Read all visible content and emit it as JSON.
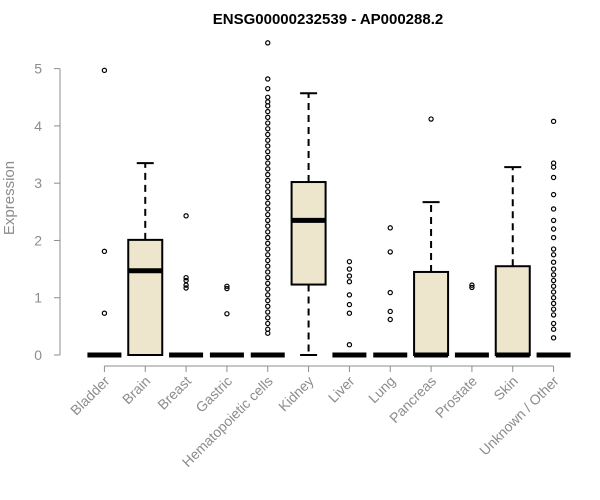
{
  "chart_data": {
    "type": "box",
    "title": "ENSG00000232539 - AP000288.2",
    "xlabel": "",
    "ylabel": "Expression",
    "ylim": [
      0,
      5.5
    ],
    "yticks": [
      0,
      1,
      2,
      3,
      4,
      5
    ],
    "ytick_labels": [
      "0",
      "1",
      "2",
      "3",
      "4",
      "5"
    ],
    "categories": [
      "Bladder",
      "Brain",
      "Breast",
      "Gastric",
      "Hematopoietic cells",
      "Kidney",
      "Liver",
      "Lung",
      "Pancreas",
      "Prostate",
      "Skin",
      "Unknown / Other"
    ],
    "box_fill": "#ede6cd",
    "grid": false,
    "boxes": [
      {
        "q1": 0,
        "median": 0,
        "q3": 0,
        "whisker_low": 0,
        "whisker_high": 0,
        "outliers": [
          4.97,
          1.81,
          0.73
        ]
      },
      {
        "q1": 0,
        "median": 1.47,
        "q3": 2.01,
        "whisker_low": 0,
        "whisker_high": 3.35,
        "outliers": []
      },
      {
        "q1": 0,
        "median": 0,
        "q3": 0,
        "whisker_low": 0,
        "whisker_high": 0,
        "outliers": [
          2.43,
          1.35,
          1.3,
          1.22,
          1.17
        ]
      },
      {
        "q1": 0,
        "median": 0,
        "q3": 0,
        "whisker_low": 0,
        "whisker_high": 0,
        "outliers": [
          1.2,
          1.16,
          0.72
        ]
      },
      {
        "q1": 0,
        "median": 0,
        "q3": 0,
        "whisker_low": 0,
        "whisker_high": 0,
        "outliers": [
          5.45,
          4.82,
          4.65,
          4.5,
          4.42,
          4.35,
          4.25,
          4.15,
          4.05,
          3.95,
          3.85,
          3.75,
          3.65,
          3.55,
          3.45,
          3.35,
          3.25,
          3.15,
          3.05,
          2.95,
          2.85,
          2.75,
          2.65,
          2.55,
          2.45,
          2.35,
          2.25,
          2.15,
          2.05,
          1.95,
          1.85,
          1.75,
          1.65,
          1.55,
          1.45,
          1.35,
          1.25,
          1.15,
          1.05,
          0.95,
          0.85,
          0.75,
          0.65,
          0.55,
          0.45,
          0.38
        ]
      },
      {
        "q1": 1.23,
        "median": 2.35,
        "q3": 3.02,
        "whisker_low": 0,
        "whisker_high": 4.57,
        "outliers": []
      },
      {
        "q1": 0,
        "median": 0,
        "q3": 0,
        "whisker_low": 0,
        "whisker_high": 0,
        "outliers": [
          1.63,
          1.5,
          1.38,
          1.28,
          1.05,
          0.88,
          0.73,
          0.18
        ]
      },
      {
        "q1": 0,
        "median": 0,
        "q3": 0,
        "whisker_low": 0,
        "whisker_high": 0,
        "outliers": [
          2.22,
          1.8,
          1.09,
          0.76,
          0.62
        ]
      },
      {
        "q1": 0,
        "median": 0,
        "q3": 1.45,
        "whisker_low": 0,
        "whisker_high": 2.67,
        "outliers": [
          4.12
        ]
      },
      {
        "q1": 0,
        "median": 0,
        "q3": 0,
        "whisker_low": 0,
        "whisker_high": 0,
        "outliers": [
          1.22,
          1.18
        ]
      },
      {
        "q1": 0,
        "median": 0,
        "q3": 1.55,
        "whisker_low": 0,
        "whisker_high": 3.28,
        "outliers": []
      },
      {
        "q1": 0,
        "median": 0,
        "q3": 0,
        "whisker_low": 0,
        "whisker_high": 0,
        "outliers": [
          4.08,
          3.35,
          3.28,
          3.1,
          2.8,
          2.55,
          2.35,
          2.2,
          2.05,
          1.85,
          1.75,
          1.62,
          1.5,
          1.4,
          1.3,
          1.2,
          1.1,
          1.0,
          0.9,
          0.8,
          0.7,
          0.55,
          0.45,
          0.3
        ]
      }
    ]
  }
}
